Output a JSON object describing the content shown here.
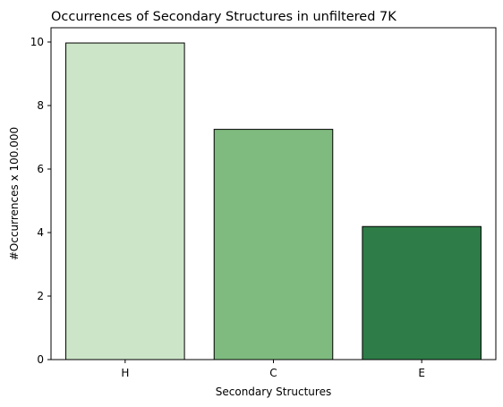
{
  "chart_data": {
    "type": "bar",
    "title": "Occurrences of Secondary Structures in unfiltered 7K",
    "xlabel": "Secondary Structures",
    "ylabel": "#Occurrences x 100.000",
    "categories": [
      "H",
      "C",
      "E"
    ],
    "values": [
      9.97,
      7.25,
      4.19
    ],
    "colors": [
      "#cce5c8",
      "#7fbb7f",
      "#2e7d48"
    ],
    "edge_color": "#000000",
    "ylim": [
      0,
      10.45
    ],
    "yticks": [
      0,
      2,
      4,
      6,
      8,
      10
    ],
    "grid": false,
    "legend": "none"
  }
}
